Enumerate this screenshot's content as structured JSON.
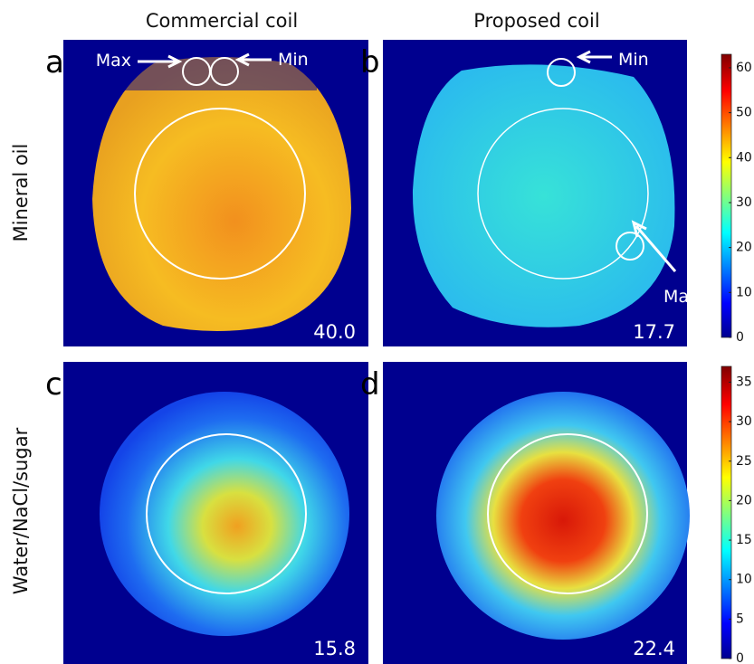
{
  "header": {
    "columns": [
      "Commercial coil",
      "Proposed coil"
    ],
    "rows": [
      "Mineral oil",
      "Water/NaCl/sugar"
    ]
  },
  "panels": [
    {
      "letter": "a",
      "value": "40.0",
      "annotations": [
        "Max",
        "Min"
      ]
    },
    {
      "letter": "b",
      "value": "17.7",
      "annotations": [
        "Min",
        "Max"
      ]
    },
    {
      "letter": "c",
      "value": "15.8"
    },
    {
      "letter": "d",
      "value": "22.4"
    }
  ],
  "colorbars": [
    {
      "range": [
        0,
        63
      ],
      "ticks": [
        0,
        10,
        20,
        30,
        40,
        50,
        60
      ]
    },
    {
      "range": [
        0,
        37
      ],
      "ticks": [
        0,
        5,
        10,
        15,
        20,
        25,
        30,
        35
      ]
    }
  ]
}
